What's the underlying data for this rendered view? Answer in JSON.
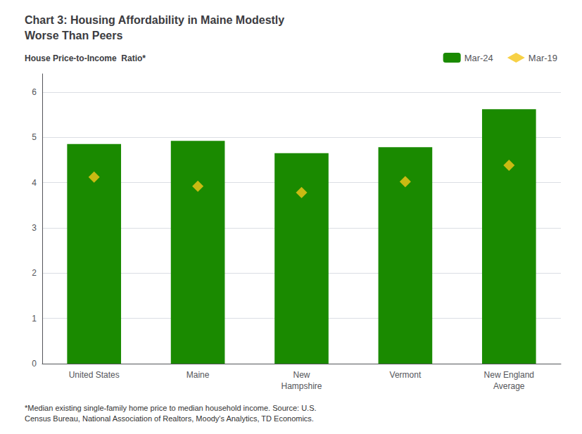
{
  "chart_data": {
    "type": "bar",
    "title": "Chart 3: Housing Affordability in Maine Modestly\nWorse Than Peers",
    "ylabel": "House Price-to-Income  Ratio*",
    "footnote": "*Median existing single-family home price to median household income. Source: U.S.\nCensus Bureau, National Association of Realtors, Moody's Analytics, TD Economics.",
    "categories": [
      "United States",
      "Maine",
      "New\nHampshire",
      "Vermont",
      "New England\nAverage"
    ],
    "series": [
      {
        "name": "Mar-24",
        "type": "bar",
        "color": "#1a8a00",
        "values": [
          4.85,
          4.92,
          4.65,
          4.78,
          5.62
        ]
      },
      {
        "name": "Mar-19",
        "type": "scatter",
        "marker": "diamond",
        "color": "#f5c518",
        "values": [
          4.12,
          3.92,
          3.78,
          4.02,
          4.38
        ]
      }
    ],
    "ylim": [
      0,
      6.4
    ],
    "yticks": [
      0,
      1,
      2,
      3,
      4,
      5,
      6
    ],
    "grid": true,
    "legend": "upper right"
  }
}
